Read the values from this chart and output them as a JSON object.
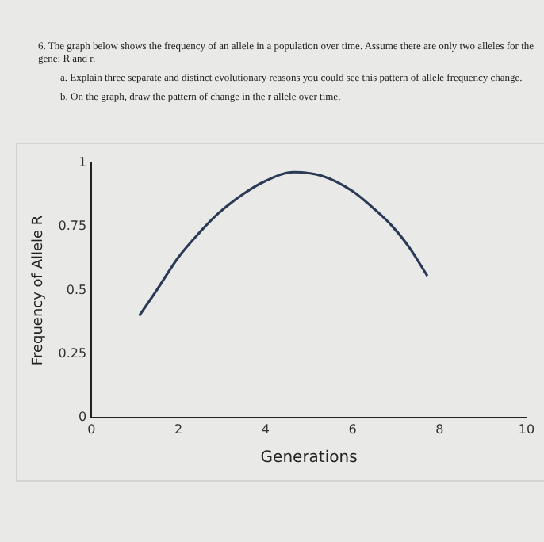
{
  "chart_data": {
    "type": "line",
    "title": "6. The graph below shows the frequency of an allele in a population over time.  Assume there are only two alleles for the gene: R and r.",
    "annotations": [
      "a. Explain three separate and distinct evolutionary reasons you could see this pattern of allele frequency change.",
      "b. On the graph, draw the pattern of change in the r allele over time."
    ],
    "xlabel": "Generations",
    "ylabel": "Frequency of Allele R",
    "x": [
      1.1,
      1.5,
      2,
      2.5,
      2.9,
      3.5,
      4,
      4.65,
      5.3,
      6,
      6.5,
      6.9,
      7.3,
      7.72
    ],
    "series": [
      {
        "color": "#2b3a55",
        "values": [
          0.4,
          0.5,
          0.63,
          0.73,
          0.8,
          0.88,
          0.93,
          0.965,
          0.95,
          0.89,
          0.82,
          0.755,
          0.67,
          0.557
        ]
      }
    ],
    "xlim": [
      0,
      10
    ],
    "xticks": [
      0,
      2,
      4,
      6,
      8,
      10
    ],
    "ylim": [
      0,
      1
    ],
    "yticks": [
      0,
      0.25,
      0.5,
      0.75,
      1
    ],
    "grid": false,
    "legend": false,
    "marker": "none",
    "line_style": "solid"
  }
}
